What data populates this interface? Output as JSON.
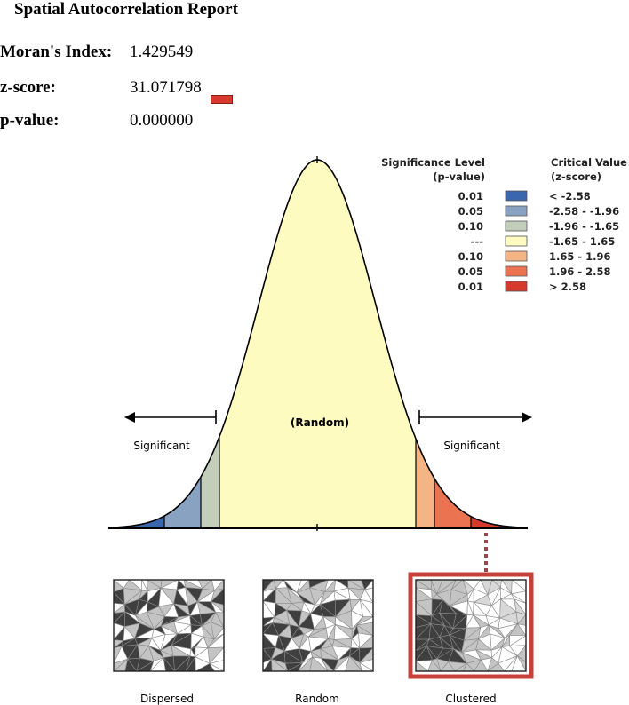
{
  "report": {
    "title": "Spatial Autocorrelation Report",
    "stats": [
      {
        "label": "Moran's Index:",
        "value": "1.429549"
      },
      {
        "label": "z-score:",
        "value": "31.071798"
      },
      {
        "label": "p-value:",
        "value": "0.000000"
      }
    ]
  },
  "legend": {
    "significance_header": [
      "Significance Level",
      "(p-value)"
    ],
    "critical_header": [
      "Critical Value",
      "(z-score)"
    ],
    "rows": [
      {
        "p": "0.01",
        "z": "< -2.58",
        "color": "#3a66ad"
      },
      {
        "p": "0.05",
        "z": "-2.58 - -1.96",
        "color": "#8aa2c2"
      },
      {
        "p": "0.10",
        "z": "-1.96 - -1.65",
        "color": "#c2cdba"
      },
      {
        "p": "---",
        "z": "-1.65 - 1.65",
        "color": "#fdfbbf"
      },
      {
        "p": "0.10",
        "z": "1.65 - 1.96",
        "color": "#f5b484"
      },
      {
        "p": "0.05",
        "z": "1.96 - 2.58",
        "color": "#ec7352"
      },
      {
        "p": "0.01",
        "z": "> 2.58",
        "color": "#d63a2c"
      }
    ]
  },
  "curve": {
    "random_label": "(Random)",
    "left_label": "Significant",
    "right_label": "Significant",
    "fill_colors": [
      "#3a66ad",
      "#8aa2c2",
      "#c2cdba",
      "#fdfbbf",
      "#f5b484",
      "#ec7352",
      "#d63a2c"
    ]
  },
  "patterns": [
    {
      "label": "Dispersed"
    },
    {
      "label": "Random"
    },
    {
      "label": "Clustered"
    }
  ],
  "colors": {
    "highlight": "#c8403a",
    "connector": "#9b4a4a"
  }
}
